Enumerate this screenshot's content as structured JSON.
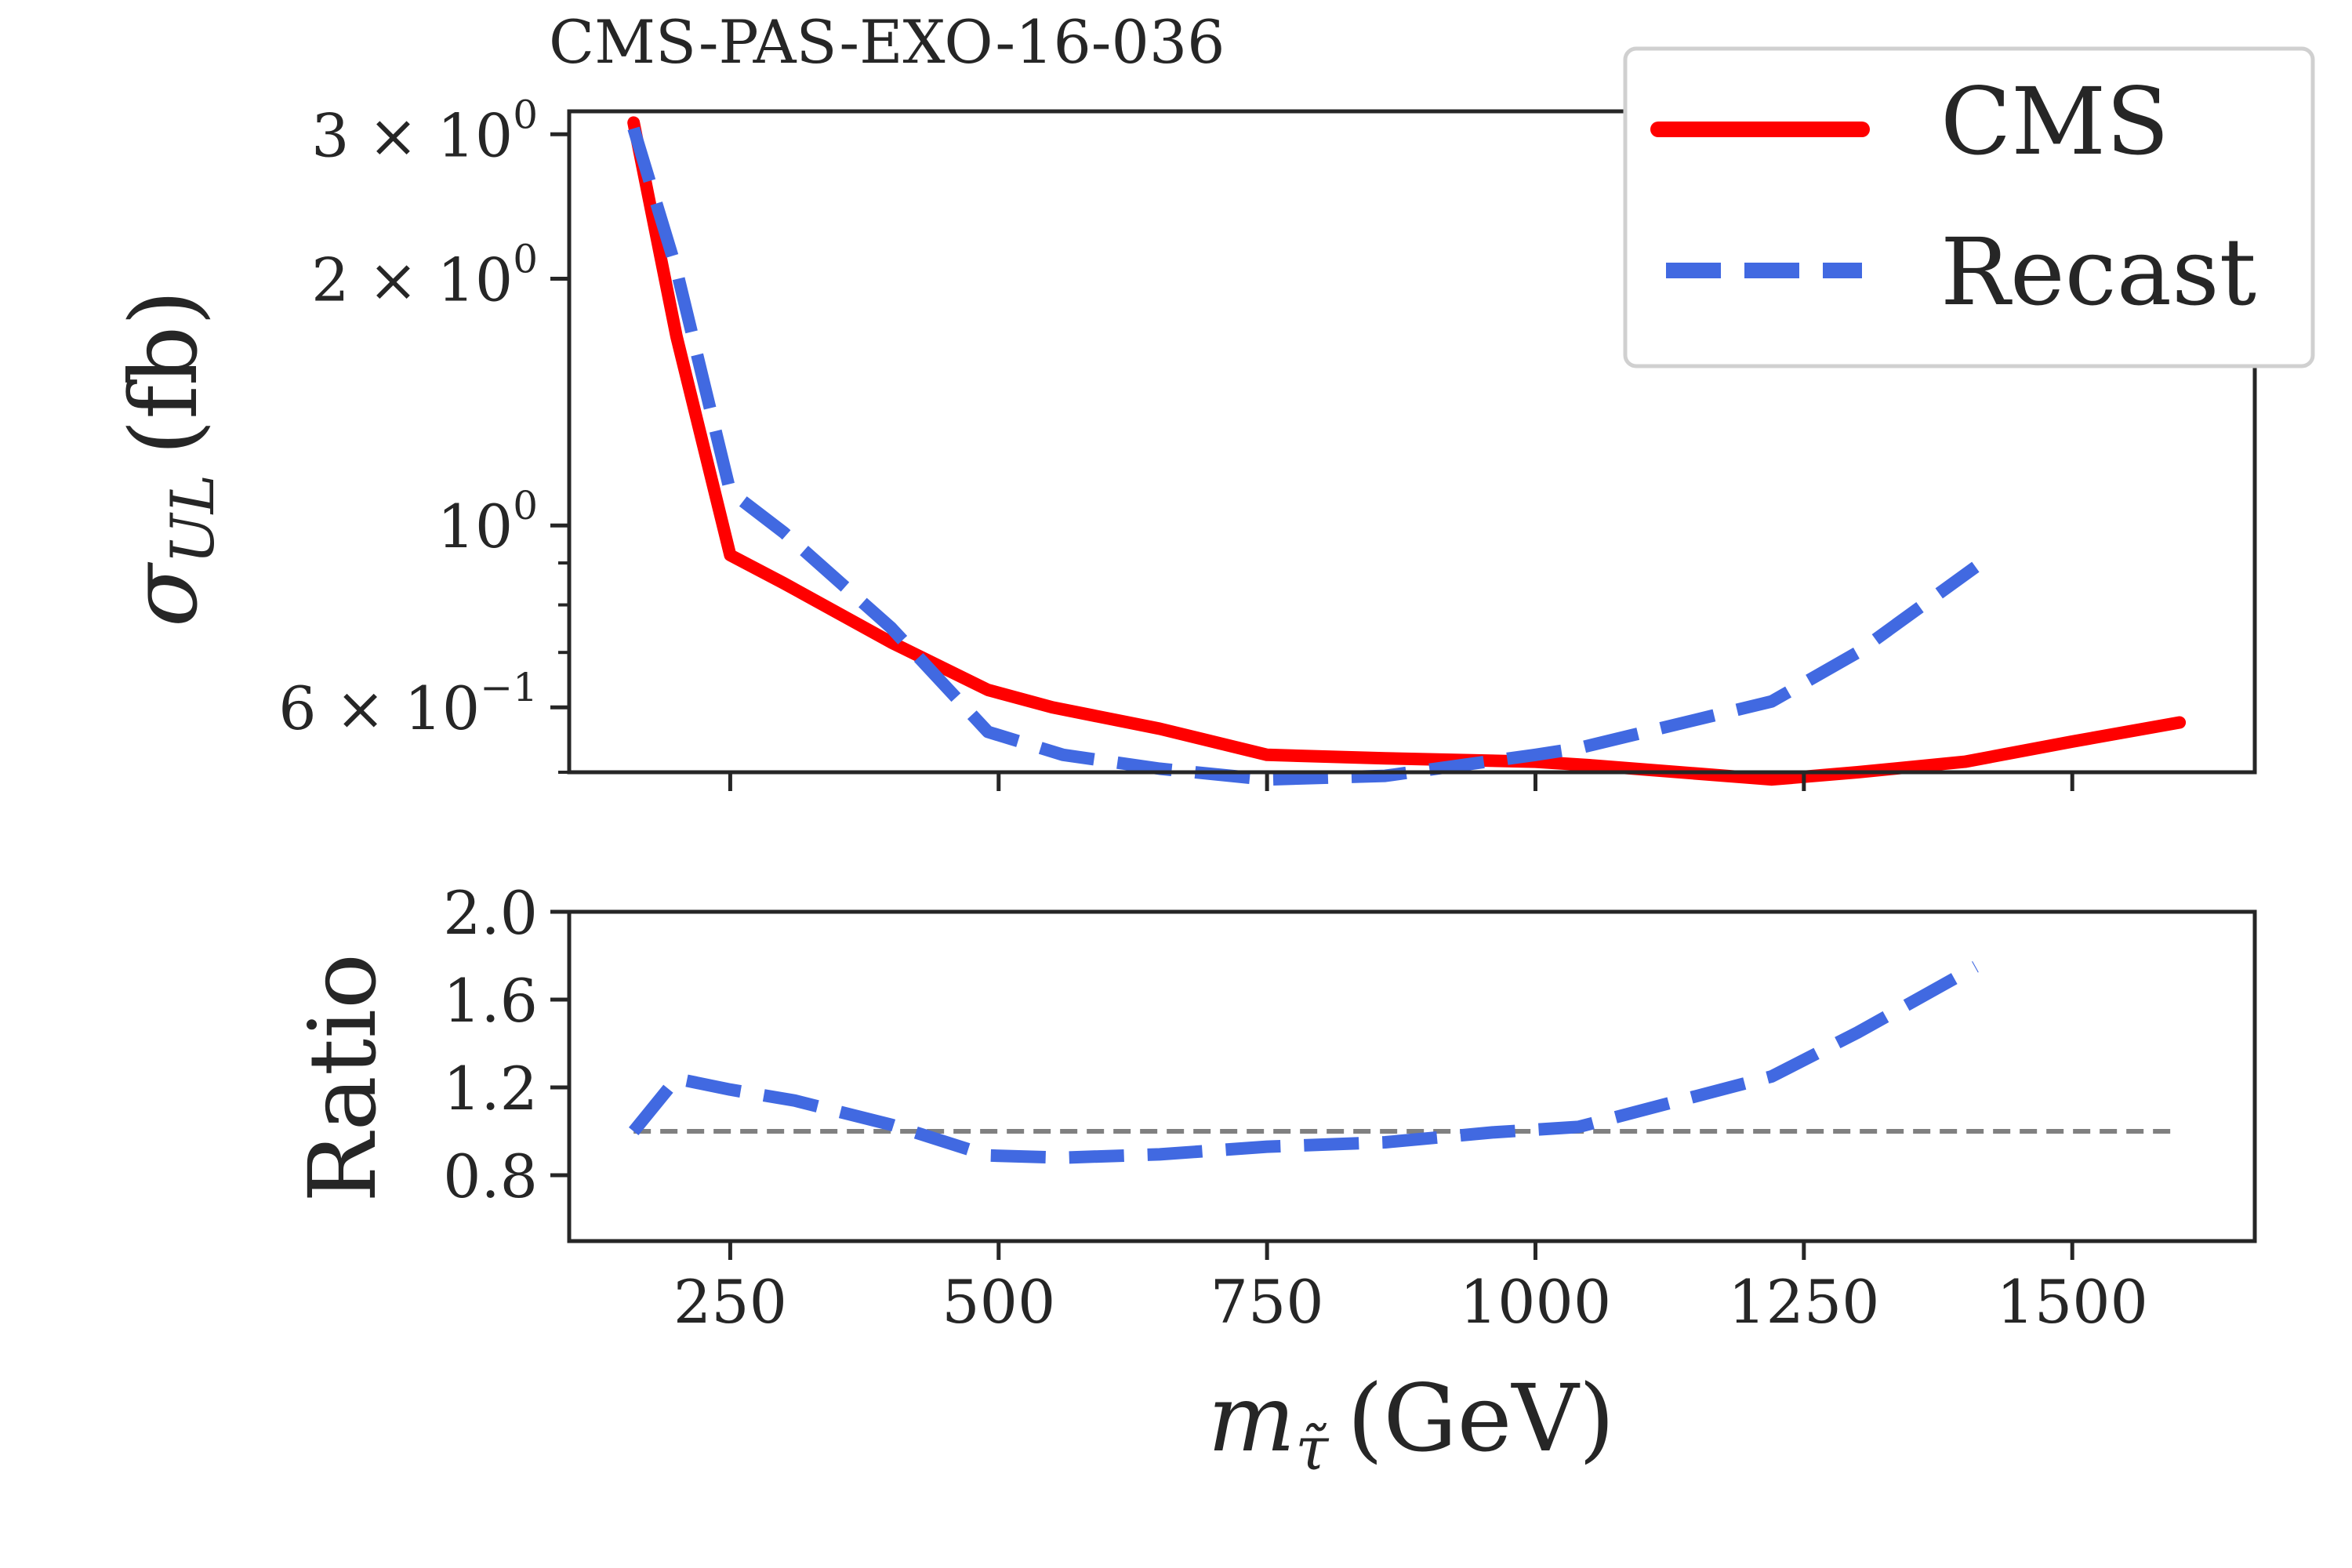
{
  "chart_data": [
    {
      "type": "line",
      "title": "CMS-PAS-EXO-16-036",
      "xlabel": "",
      "ylabel_main": "σ",
      "ylabel_sub": "UL",
      "ylabel_unit": "(fb)",
      "yscale": "log",
      "xlim": [
        100,
        1670
      ],
      "ylim": [
        0.5,
        3.2
      ],
      "xticks": [
        250,
        500,
        750,
        1000,
        1250,
        1500
      ],
      "yticks": [
        {
          "value": 3.0,
          "mant": "3 × 10",
          "exp": "0"
        },
        {
          "value": 2.0,
          "mant": "2 × 10",
          "exp": "0"
        },
        {
          "value": 1.0,
          "mant": "10",
          "exp": "0"
        },
        {
          "value": 0.6,
          "mant": "6 × 10",
          "exp": "−1"
        }
      ],
      "minor_yticks": [
        0.9,
        0.8,
        0.7,
        0.5
      ],
      "legend": {
        "placement": "top-right"
      },
      "series": [
        {
          "name": "CMS",
          "color": "#ff0000",
          "dash": "solid",
          "x": [
            160,
            200,
            250,
            300,
            400,
            490,
            550,
            650,
            750,
            860,
            1000,
            1050,
            1220,
            1300,
            1400,
            1500,
            1600
          ],
          "y": [
            3.1,
            1.7,
            0.92,
            0.85,
            0.72,
            0.63,
            0.6,
            0.565,
            0.525,
            0.52,
            0.515,
            0.51,
            0.49,
            0.5,
            0.515,
            0.545,
            0.575
          ]
        },
        {
          "name": "Recast",
          "color": "#4169e1",
          "dash": "dashed",
          "x": [
            160,
            200,
            250,
            300,
            400,
            490,
            560,
            650,
            750,
            860,
            1000,
            1040,
            1220,
            1300,
            1410
          ],
          "y": [
            3.05,
            2.05,
            1.1,
            0.98,
            0.75,
            0.56,
            0.525,
            0.505,
            0.49,
            0.495,
            0.525,
            0.535,
            0.61,
            0.7,
            0.89
          ]
        }
      ]
    },
    {
      "type": "line",
      "title": "",
      "xlabel_main": "m",
      "xlabel_sub": "τ̃",
      "xlabel_unit": "(GeV)",
      "ylabel": "Ratio",
      "xlim": [
        100,
        1670
      ],
      "ylim": [
        0.5,
        2.0
      ],
      "xticks": [
        250,
        500,
        750,
        1000,
        1250,
        1500
      ],
      "yticks": [
        "0.8",
        "1.2",
        "1.6",
        "2.0"
      ],
      "reference_line": {
        "y": 1.0,
        "color": "#808080",
        "x": [
          160,
          1600
        ]
      },
      "series": [
        {
          "name": "Recast",
          "color": "#4169e1",
          "dash": "dashed",
          "x": [
            160,
            200,
            250,
            310,
            400,
            490,
            560,
            650,
            750,
            860,
            960,
            1040,
            1220,
            1300,
            1410
          ],
          "y": [
            1.0,
            1.24,
            1.19,
            1.14,
            1.03,
            0.89,
            0.88,
            0.895,
            0.93,
            0.95,
            0.995,
            1.02,
            1.25,
            1.45,
            1.75
          ]
        }
      ]
    }
  ]
}
